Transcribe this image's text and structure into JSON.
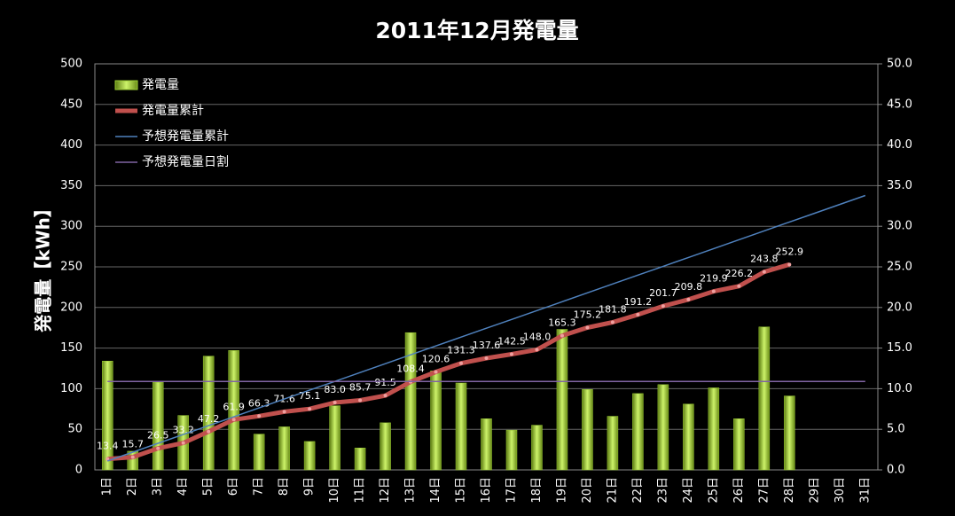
{
  "chart_data": {
    "type": "bar-line",
    "title": "2011年12月発電量",
    "ylabel": "発電量【kWh】",
    "legend": "upper left",
    "grid": true,
    "categories": [
      "1日",
      "2日",
      "3日",
      "4日",
      "5日",
      "6日",
      "7日",
      "8日",
      "9日",
      "10日",
      "11日",
      "12日",
      "13日",
      "14日",
      "15日",
      "16日",
      "17日",
      "18日",
      "19日",
      "20日",
      "21日",
      "22日",
      "23日",
      "24日",
      "25日",
      "26日",
      "27日",
      "28日",
      "29日",
      "30日",
      "31日"
    ],
    "ylim": [
      0,
      500
    ],
    "yticks": [
      0,
      50,
      100,
      150,
      200,
      250,
      300,
      350,
      400,
      450,
      500
    ],
    "y2lim": [
      0,
      50
    ],
    "y2ticks": [
      {
        "value": 0,
        "label": "0.0"
      },
      {
        "value": 5,
        "label": "5.0"
      },
      {
        "value": 10,
        "label": "10.0"
      },
      {
        "value": 15,
        "label": "15.0"
      },
      {
        "value": 20,
        "label": "20.0"
      },
      {
        "value": 25,
        "label": "25.0"
      },
      {
        "value": 30,
        "label": "30.0"
      },
      {
        "value": 35,
        "label": "35.0"
      },
      {
        "value": 40,
        "label": "40.0"
      },
      {
        "value": 45,
        "label": "45.0"
      },
      {
        "value": 50,
        "label": "50.0"
      }
    ],
    "series": [
      {
        "name": "発電量",
        "kind": "bar",
        "axis": "y2",
        "color": "#9acd32",
        "values": [
          13.4,
          2.3,
          10.8,
          6.7,
          14.0,
          14.7,
          4.4,
          5.3,
          3.5,
          7.9,
          2.7,
          5.8,
          16.9,
          12.2,
          10.7,
          6.3,
          4.9,
          5.5,
          17.3,
          9.9,
          6.6,
          9.4,
          10.5,
          8.1,
          10.1,
          6.3,
          17.6,
          9.1,
          null,
          null,
          null
        ]
      },
      {
        "name": "発電量累計",
        "kind": "line",
        "axis": "y",
        "color": "#c0504d",
        "values": [
          13.4,
          15.7,
          26.5,
          33.2,
          47.2,
          61.9,
          66.3,
          71.6,
          75.1,
          83.0,
          85.7,
          91.5,
          108.4,
          120.6,
          131.3,
          137.6,
          142.5,
          148.0,
          165.3,
          175.2,
          181.8,
          191.2,
          201.7,
          209.8,
          219.9,
          226.2,
          243.8,
          252.9,
          null,
          null,
          null
        ],
        "value_labels": [
          "13.4",
          "15.7",
          "26.5",
          "33.2",
          "47.2",
          "61.9",
          "66.3",
          "71.6",
          "75.1",
          "83.0",
          "85.7",
          "91.5",
          "108.4",
          "120.6",
          "131.3",
          "137.6",
          "142.5",
          "148.0",
          "165.3",
          "175.2",
          "181.8",
          "191.2",
          "201.7",
          "209.8",
          "219.9",
          "226.2",
          "243.8",
          "252.9",
          null,
          null,
          null
        ]
      },
      {
        "name": "予想発電量累計",
        "kind": "line",
        "axis": "y",
        "color": "#4f81bd",
        "values": [
          10.9,
          21.8,
          32.7,
          43.6,
          54.5,
          65.4,
          76.3,
          87.2,
          98.1,
          109,
          119.9,
          130.8,
          141.7,
          152.6,
          163.5,
          174.4,
          185.3,
          196.2,
          207.1,
          218,
          228.9,
          239.8,
          250.7,
          261.6,
          272.5,
          283.4,
          294.3,
          305.2,
          316.1,
          327,
          337.9
        ]
      },
      {
        "name": "予想発電量日割",
        "kind": "line",
        "axis": "y2",
        "color": "#8064a2",
        "values": [
          10.9,
          10.9,
          10.9,
          10.9,
          10.9,
          10.9,
          10.9,
          10.9,
          10.9,
          10.9,
          10.9,
          10.9,
          10.9,
          10.9,
          10.9,
          10.9,
          10.9,
          10.9,
          10.9,
          10.9,
          10.9,
          10.9,
          10.9,
          10.9,
          10.9,
          10.9,
          10.9,
          10.9,
          10.9,
          10.9,
          10.9
        ]
      }
    ]
  }
}
